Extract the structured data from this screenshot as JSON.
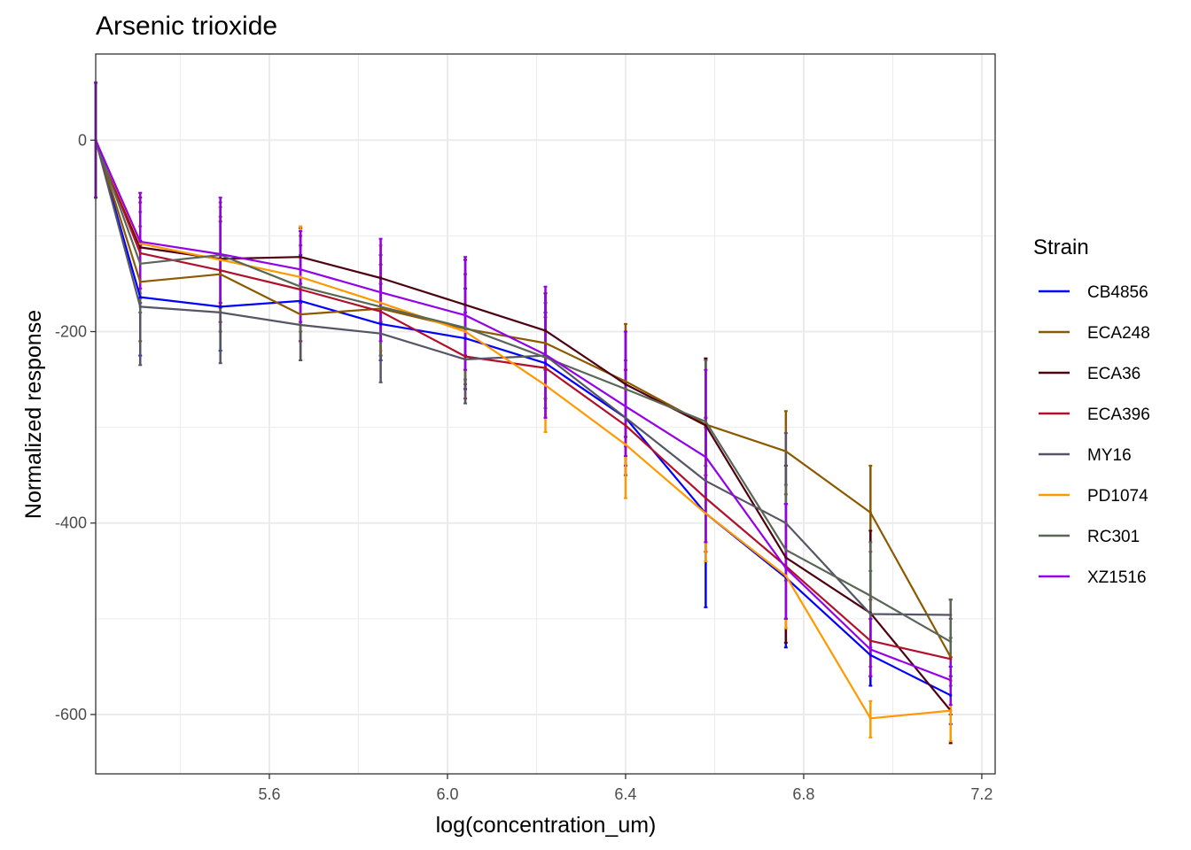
{
  "chart_data": {
    "type": "line",
    "title": "Arsenic trioxide",
    "xlabel": "log(concentration_um)",
    "ylabel": "Normalized response",
    "xlim": [
      5.21,
      7.23
    ],
    "ylim": [
      -662,
      90
    ],
    "x_ticks": [
      5.6,
      6.0,
      6.4,
      6.8,
      7.2
    ],
    "x_tick_labels": [
      "5.6",
      "6.0",
      "6.4",
      "6.8",
      "7.2"
    ],
    "y_ticks": [
      0,
      -200,
      -400,
      -600
    ],
    "y_tick_labels": [
      "0",
      "-200",
      "-400",
      "-600"
    ],
    "grid": true,
    "legend": {
      "title": "Strain",
      "position": "right"
    },
    "x": [
      5.21,
      5.31,
      5.49,
      5.67,
      5.85,
      6.04,
      6.22,
      6.4,
      6.58,
      6.76,
      6.95,
      7.13
    ],
    "series": [
      {
        "name": "CB4856",
        "color": "#0000ff",
        "values": [
          0,
          -164,
          -174,
          -168,
          -192,
          -207,
          -233,
          -290,
          -390,
          -457,
          -538,
          -580
        ],
        "error": [
          [
            -60,
            60
          ],
          [
            -225,
            -105
          ],
          [
            -220,
            -120
          ],
          [
            -210,
            -120
          ],
          [
            -230,
            -150
          ],
          [
            -260,
            -155
          ],
          [
            -290,
            -180
          ],
          [
            -340,
            -240
          ],
          [
            -488,
            -290
          ],
          [
            -530,
            -380
          ],
          [
            -570,
            -500
          ],
          [
            -610,
            -550
          ]
        ]
      },
      {
        "name": "ECA248",
        "color": "#8b5a00",
        "values": [
          0,
          -148,
          -140,
          -182,
          -176,
          -197,
          -212,
          -252,
          -297,
          -325,
          -389,
          -540
        ],
        "error": [
          [
            -60,
            60
          ],
          [
            -210,
            -90
          ],
          [
            -200,
            -80
          ],
          [
            -230,
            -95
          ],
          [
            -225,
            -120
          ],
          [
            -255,
            -140
          ],
          [
            -270,
            -160
          ],
          [
            -310,
            -192
          ],
          [
            -340,
            -228
          ],
          [
            -370,
            -283
          ],
          [
            -430,
            -340
          ],
          [
            -600,
            -480
          ]
        ]
      },
      {
        "name": "ECA36",
        "color": "#4d0010",
        "values": [
          0,
          -112,
          -124,
          -122,
          -144,
          -172,
          -199,
          -255,
          -298,
          -436,
          -494,
          -596
        ],
        "error": [
          [
            -60,
            60
          ],
          [
            -165,
            -60
          ],
          [
            -170,
            -70
          ],
          [
            -170,
            -92
          ],
          [
            -190,
            -110
          ],
          [
            -225,
            -125
          ],
          [
            -240,
            -160
          ],
          [
            -310,
            -200
          ],
          [
            -350,
            -228
          ],
          [
            -525,
            -340
          ],
          [
            -560,
            -408
          ],
          [
            -630,
            -560
          ]
        ]
      },
      {
        "name": "ECA396",
        "color": "#b0102a",
        "values": [
          0,
          -118,
          -136,
          -156,
          -179,
          -226,
          -238,
          -298,
          -374,
          -445,
          -523,
          -542
        ],
        "error": [
          [
            -60,
            60
          ],
          [
            -170,
            -65
          ],
          [
            -190,
            -85
          ],
          [
            -210,
            -110
          ],
          [
            -225,
            -130
          ],
          [
            -270,
            -180
          ],
          [
            -290,
            -185
          ],
          [
            -350,
            -240
          ],
          [
            -430,
            -300
          ],
          [
            -500,
            -380
          ],
          [
            -560,
            -480
          ],
          [
            -600,
            -500
          ]
        ]
      },
      {
        "name": "MY16",
        "color": "#555566",
        "values": [
          0,
          -174,
          -180,
          -193,
          -202,
          -229,
          -225,
          -290,
          -356,
          -400,
          -495,
          -496
        ],
        "error": [
          [
            -60,
            60
          ],
          [
            -235,
            -110
          ],
          [
            -233,
            -125
          ],
          [
            -230,
            -150
          ],
          [
            -253,
            -150
          ],
          [
            -275,
            -180
          ],
          [
            -280,
            -170
          ],
          [
            -350,
            -230
          ],
          [
            -420,
            -290
          ],
          [
            -460,
            -306
          ],
          [
            -550,
            -450
          ],
          [
            -520,
            -480
          ]
        ]
      },
      {
        "name": "PD1074",
        "color": "#ff9900",
        "values": [
          0,
          -108,
          -125,
          -143,
          -170,
          -200,
          -256,
          -318,
          -390,
          -455,
          -604,
          -596
        ],
        "error": [
          [
            -60,
            60
          ],
          [
            -160,
            -55
          ],
          [
            -180,
            -70
          ],
          [
            -200,
            -90
          ],
          [
            -220,
            -110
          ],
          [
            -250,
            -140
          ],
          [
            -305,
            -200
          ],
          [
            -374,
            -260
          ],
          [
            -440,
            -330
          ],
          [
            -510,
            -400
          ],
          [
            -624,
            -586
          ],
          [
            -628,
            -565
          ]
        ]
      },
      {
        "name": "RC301",
        "color": "#5a6656",
        "values": [
          0,
          -129,
          -120,
          -153,
          -174,
          -196,
          -227,
          -260,
          -294,
          -428,
          -476,
          -524
        ],
        "error": [
          [
            -60,
            60
          ],
          [
            -180,
            -75
          ],
          [
            -180,
            -65
          ],
          [
            -200,
            -100
          ],
          [
            -225,
            -120
          ],
          [
            -250,
            -140
          ],
          [
            -280,
            -170
          ],
          [
            -320,
            -200
          ],
          [
            -340,
            -230
          ],
          [
            -500,
            -360
          ],
          [
            -530,
            -420
          ],
          [
            -570,
            -480
          ]
        ]
      },
      {
        "name": "XZ1516",
        "color": "#9400e8",
        "values": [
          0,
          -106,
          -119,
          -135,
          -159,
          -183,
          -224,
          -278,
          -331,
          -447,
          -532,
          -564
        ],
        "error": [
          [
            -60,
            60
          ],
          [
            -155,
            -55
          ],
          [
            -175,
            -60
          ],
          [
            -190,
            -95
          ],
          [
            -210,
            -103
          ],
          [
            -240,
            -122
          ],
          [
            -290,
            -153
          ],
          [
            -330,
            -200
          ],
          [
            -420,
            -240
          ],
          [
            -500,
            -380
          ],
          [
            -560,
            -500
          ],
          [
            -590,
            -540
          ]
        ]
      }
    ]
  }
}
